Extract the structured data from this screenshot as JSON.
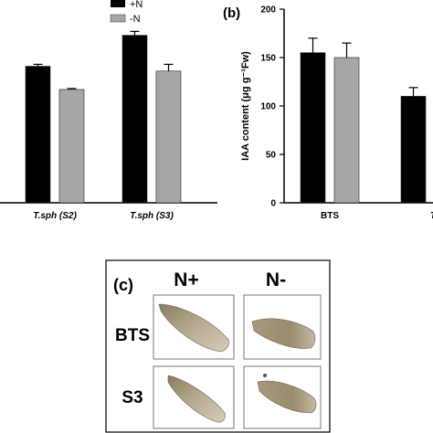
{
  "legend": {
    "items": [
      {
        "label": "+N",
        "color": "#000000"
      },
      {
        "label": "-N",
        "color": "#a6a6a6"
      }
    ]
  },
  "panels": {
    "b_label": "(b)",
    "c_label": "(c)"
  },
  "chart_data": [
    {
      "type": "bar",
      "panel": "a (partially visible)",
      "categories": [
        "T.sph (S2)",
        "T.sph (S3)"
      ],
      "series": [
        {
          "name": "+N",
          "values": [
            141,
            173
          ],
          "errors": [
            2,
            4
          ],
          "color": "#000000"
        },
        {
          "name": "-N",
          "values": [
            117,
            136
          ],
          "errors": [
            1,
            7
          ],
          "color": "#a6a6a6"
        }
      ],
      "ylim": [
        0,
        200
      ],
      "xlabel": "",
      "ylabel": "",
      "legend_position": "top-right"
    },
    {
      "type": "bar",
      "panel": "b",
      "categories": [
        "BTS",
        "T.sph"
      ],
      "series": [
        {
          "name": "+N",
          "values": [
            155,
            110
          ],
          "errors": [
            15,
            9
          ],
          "color": "#000000"
        },
        {
          "name": "-N",
          "values": [
            150,
            null
          ],
          "errors": [
            15,
            null
          ],
          "color": "#a6a6a6"
        }
      ],
      "yticks": [
        0,
        50,
        100,
        150,
        200
      ],
      "ylim": [
        0,
        200
      ],
      "ylabel": "IAA content (μg g⁻¹Fw)",
      "xlabel": ""
    }
  ],
  "photo_panel": {
    "columns": [
      "N+",
      "N-"
    ],
    "rows": [
      "BTS",
      "S3"
    ]
  }
}
